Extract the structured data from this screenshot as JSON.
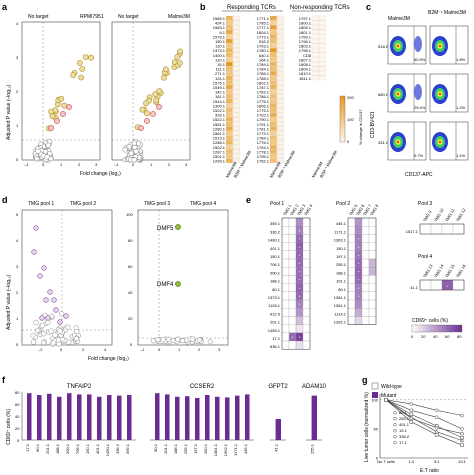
{
  "panels": {
    "a": {
      "letter": "a",
      "left": {
        "no_target": "No target",
        "cell": "RPMI7951"
      },
      "right": {
        "no_target": "No target",
        "cell": "Malme3M"
      },
      "xlabel": "Fold change (log₂)",
      "ylabel": "Adjusted P value (–log₁₀)",
      "x_ticks": [
        "–1",
        "0",
        "1",
        "2",
        "3"
      ],
      "y_ticks": [
        "0",
        "1",
        "2",
        "3",
        "4"
      ]
    },
    "b": {
      "letter": "b",
      "title_resp": "Responding TCRs",
      "title_nonresp": "Non-responding TCRs",
      "col_labels": [
        "Malme3M",
        "B2M⁻¹ Malme3M"
      ],
      "legend_title": "% change in CD137",
      "legend_ticks": [
        "0",
        "100",
        "200"
      ],
      "resp_col1": [
        "1565.1",
        "424.1",
        "1563.1",
        "6.1",
        "1579.1",
        "150.1",
        "110.1",
        "1373.1",
        "1400.1",
        "110.1",
        "15.1",
        "111.1",
        "271.1",
        "124.1",
        "1575.1",
        "1549.1",
        "142.1",
        "161.1",
        "1544.1",
        "1305.1",
        "1522.1",
        "333.1",
        "1522.1",
        "1581.1",
        "1280.1",
        "1561.1",
        "1513.1",
        "1286.1",
        "1502.1",
        "1287.1",
        "1501.1",
        "1299.1"
      ],
      "resp_col2": [
        "1771.1",
        "1785.1",
        "1777.1",
        "1804.1",
        "1773.1",
        "518.2",
        "1793.1",
        "1780.1",
        "640.1",
        "164.1",
        "1789.1",
        "1784.1",
        "1786.1",
        "1788.1",
        "1802.1",
        "1787.1",
        "1783.1",
        "1786.1",
        "1775.1",
        "1806.1",
        "1775.1",
        "1792.1",
        "1790.1",
        "1791.1",
        "1781.1",
        "1779.1",
        "1784.1",
        "1776.1",
        "1794.1",
        "1778.1",
        "1795.1",
        "1782.1"
      ],
      "nonresp": [
        "1797.1",
        "1800.1",
        "1805.1",
        "1801.1",
        "1799.1",
        "1796.1",
        "1803.1",
        "1798.1",
        "CD8",
        "1807.1",
        "1808.1",
        "1809.1",
        "1810.1",
        "1811.1"
      ]
    },
    "c": {
      "letter": "c",
      "cols": [
        "Malme3M",
        "B2M⁻¹ Malme3M"
      ],
      "rows": [
        {
          "label": "518.2",
          "left_pct": "40.9%",
          "right_pct": "1.8%"
        },
        {
          "label": "680.1",
          "left_pct": "29.4%",
          "right_pct": "1.2%"
        },
        {
          "label": "331.1",
          "left_pct": "0.7%",
          "right_pct": "1.1%"
        }
      ],
      "xlabel": "CD137-APC",
      "ylabel": "CD3-BV421"
    },
    "d": {
      "letter": "d",
      "left": {
        "pool_a": "TMG pool 1",
        "pool_b": "TMG pool 2"
      },
      "right": {
        "pool_a": "TMG pool 3",
        "pool_b": "TMG pool 4"
      },
      "labels": [
        "DMF5",
        "DMF4"
      ],
      "xlabel": "Fold change (log₂)",
      "ylabel": "Adjusted P value (–log₁₀)",
      "left_x_ticks": [
        "–2",
        "0",
        "2",
        "4"
      ],
      "left_y_ticks": [
        "0",
        "1",
        "2",
        "3",
        "4",
        "5"
      ],
      "right_x_ticks": [
        "–1",
        "0",
        "1",
        "2",
        "3"
      ],
      "right_y_ticks": [
        "0",
        "20",
        "40",
        "60",
        "80",
        "100"
      ]
    },
    "e": {
      "letter": "e",
      "pool1": {
        "title": "Pool 1",
        "cols": [
          "TMG 1",
          "TMG 2",
          "TMG 3",
          "TMG 4"
        ],
        "rows": [
          "359.1",
          "336.2",
          "1490.1",
          "401.1",
          "150.1",
          "706.1",
          "200.1",
          "188.1",
          "80.1",
          "1379.1",
          "1126.1",
          "612.5",
          "201.1",
          "1455.1",
          "17.1",
          "836.1"
        ]
      },
      "pool2": {
        "title": "Pool 2",
        "cols": [
          "TMG 5",
          "TMG 6",
          "TMG 7",
          "TMG 8"
        ],
        "rows": [
          "445.1",
          "1171.1",
          "1362.1",
          "150.1",
          "197.1",
          "255.1",
          "188.1",
          "101.1",
          "80.1",
          "1381.1",
          "1361.1",
          "1114.1",
          "1392.1"
        ]
      },
      "pool3": {
        "title": "Pool 3",
        "cols": [
          "TMG 9",
          "TMG 10",
          "TMG 11",
          "TMG 12"
        ],
        "rows": [
          "1517.1"
        ]
      },
      "pool4": {
        "title": "Pool 4",
        "cols": [
          "TMG 13",
          "TMG 14",
          "TMG 15",
          "TMG 16"
        ],
        "rows": [
          "41.1"
        ]
      },
      "legend_title": "CD69⁺ cells (%)",
      "legend_ticks": [
        "0",
        "20",
        "40",
        "60",
        "80"
      ]
    },
    "f": {
      "letter": "f",
      "ylabel": "CD69⁺ cells (%)",
      "y_ticks": [
        "0",
        "20",
        "40",
        "60",
        "80"
      ],
      "legend": [
        "Wild-type",
        "Mutant"
      ],
      "groups": [
        {
          "gene": "TNFAIP2",
          "tcrs": [
            "17.1",
            "80.1",
            "201.1",
            "188.1",
            "200.1",
            "706.1",
            "150.1",
            "401.1",
            "1490.1",
            "336.2",
            "359.1"
          ],
          "values": [
            78,
            75,
            77,
            72,
            78,
            76,
            76,
            72,
            75,
            74,
            75
          ]
        },
        {
          "gene": "CCSER2",
          "tcrs": [
            "80.1",
            "101.1",
            "188.1",
            "255.1",
            "197.1",
            "150.1",
            "1381.1",
            "1362.1",
            "1171.1",
            "445.1"
          ],
          "values": [
            78,
            76,
            72,
            73,
            70,
            75,
            72,
            71,
            74,
            76
          ]
        },
        {
          "gene": "GFPT2",
          "tcrs": [
            "41.1"
          ],
          "values": [
            35
          ]
        },
        {
          "gene": "ADAM10",
          "tcrs": [
            "255.1"
          ],
          "values": [
            74
          ]
        }
      ]
    },
    "g": {
      "letter": "g",
      "ylabel": "Live tumor cells (normalized %)",
      "xlabel": "E:T ratio",
      "x_ticks": [
        "No T cells",
        "1:1",
        "3:1",
        "10:1"
      ],
      "y_ticks": [
        "0",
        "50",
        "100"
      ],
      "series": [
        "80.1",
        "255.1",
        "401.1",
        "19.1",
        "336.2",
        "17.1"
      ],
      "chart_data": {
        "type": "line",
        "categories": [
          "No T cells",
          "1:1",
          "3:1",
          "10:1"
        ],
        "series": [
          {
            "name": "80.1",
            "values": [
              100,
              93,
              82,
              73
            ]
          },
          {
            "name": "255.1",
            "values": [
              100,
              82,
              70,
              50
            ]
          },
          {
            "name": "401.1",
            "values": [
              100,
              75,
              55,
              35
            ]
          },
          {
            "name": "19.1",
            "values": [
              100,
              70,
              45,
              30
            ]
          },
          {
            "name": "336.2",
            "values": [
              100,
              68,
              52,
              42
            ]
          },
          {
            "name": "17.1",
            "values": [
              100,
              62,
              40,
              22
            ]
          }
        ],
        "ylim": [
          0,
          110
        ]
      }
    }
  }
}
